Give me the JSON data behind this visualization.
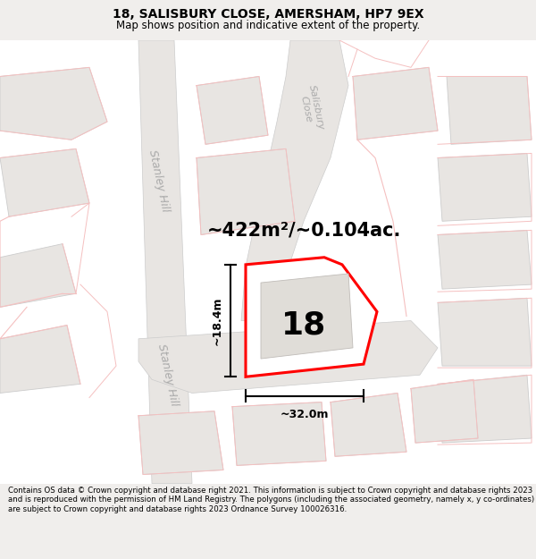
{
  "title": "18, SALISBURY CLOSE, AMERSHAM, HP7 9EX",
  "subtitle": "Map shows position and indicative extent of the property.",
  "footer": "Contains OS data © Crown copyright and database right 2021. This information is subject to Crown copyright and database rights 2023 and is reproduced with the permission of HM Land Registry. The polygons (including the associated geometry, namely x, y co-ordinates) are subject to Crown copyright and database rights 2023 Ordnance Survey 100026316.",
  "bg_color": "#f0eeec",
  "map_bg": "#ffffff",
  "area_text": "~422m²/~0.104ac.",
  "number_label": "18",
  "width_label": "~32.0m",
  "height_label": "~18.4m",
  "road_label_stanley1": "Stanley Hill",
  "road_label_stanley2": "Stanley Hill",
  "road_label_salisbury1": "Salisbury Close",
  "road_label_salisbury2": "Salisbury Close",
  "title_fontsize": 10,
  "subtitle_fontsize": 8.5,
  "footer_fontsize": 6.2,
  "figure_width": 6.0,
  "figure_height": 6.25
}
